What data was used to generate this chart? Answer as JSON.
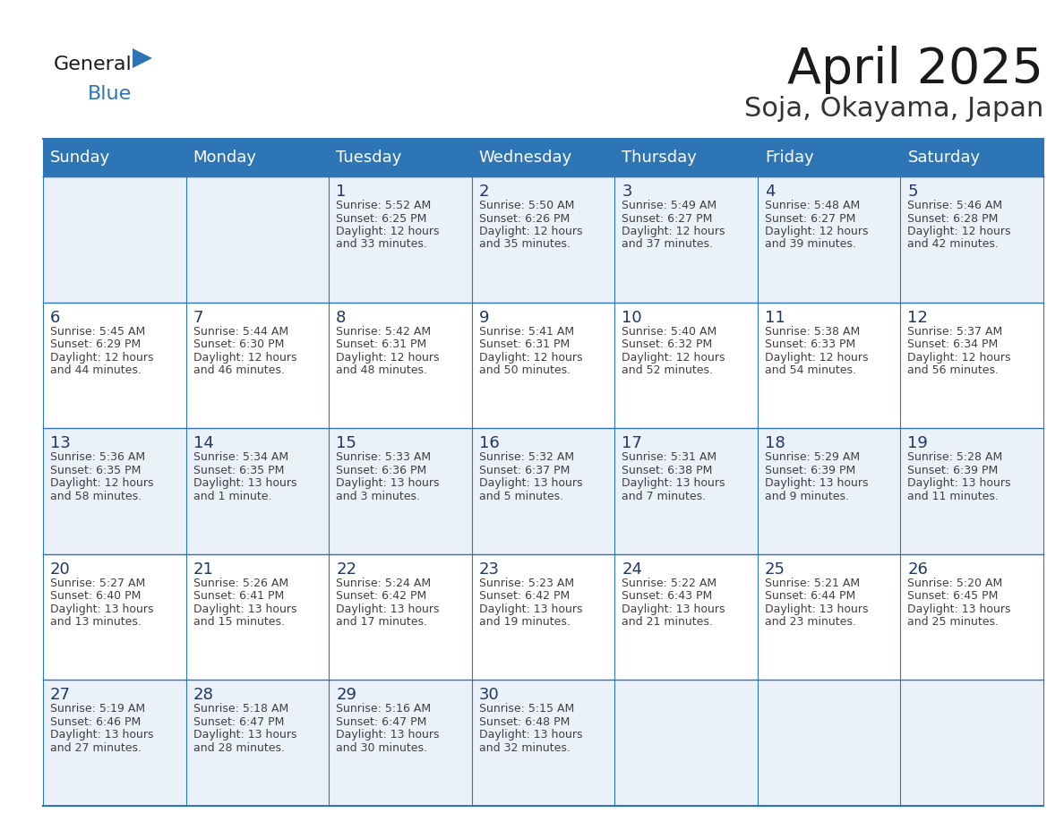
{
  "title": "April 2025",
  "subtitle": "Soja, Okayama, Japan",
  "header_bg": "#2E75B6",
  "header_text_color": "#FFFFFF",
  "cell_bg_white": "#FFFFFF",
  "cell_bg_gray": "#EAF1F8",
  "grid_line_color": "#2E75B6",
  "day_number_color": "#1F3864",
  "text_color": "#404040",
  "days_of_week": [
    "Sunday",
    "Monday",
    "Tuesday",
    "Wednesday",
    "Thursday",
    "Friday",
    "Saturday"
  ],
  "weeks": [
    [
      {
        "day": "",
        "sunrise": "",
        "sunset": "",
        "daylight": ""
      },
      {
        "day": "",
        "sunrise": "",
        "sunset": "",
        "daylight": ""
      },
      {
        "day": "1",
        "sunrise": "5:52 AM",
        "sunset": "6:25 PM",
        "daylight": "12 hours and 33 minutes."
      },
      {
        "day": "2",
        "sunrise": "5:50 AM",
        "sunset": "6:26 PM",
        "daylight": "12 hours and 35 minutes."
      },
      {
        "day": "3",
        "sunrise": "5:49 AM",
        "sunset": "6:27 PM",
        "daylight": "12 hours and 37 minutes."
      },
      {
        "day": "4",
        "sunrise": "5:48 AM",
        "sunset": "6:27 PM",
        "daylight": "12 hours and 39 minutes."
      },
      {
        "day": "5",
        "sunrise": "5:46 AM",
        "sunset": "6:28 PM",
        "daylight": "12 hours and 42 minutes."
      }
    ],
    [
      {
        "day": "6",
        "sunrise": "5:45 AM",
        "sunset": "6:29 PM",
        "daylight": "12 hours and 44 minutes."
      },
      {
        "day": "7",
        "sunrise": "5:44 AM",
        "sunset": "6:30 PM",
        "daylight": "12 hours and 46 minutes."
      },
      {
        "day": "8",
        "sunrise": "5:42 AM",
        "sunset": "6:31 PM",
        "daylight": "12 hours and 48 minutes."
      },
      {
        "day": "9",
        "sunrise": "5:41 AM",
        "sunset": "6:31 PM",
        "daylight": "12 hours and 50 minutes."
      },
      {
        "day": "10",
        "sunrise": "5:40 AM",
        "sunset": "6:32 PM",
        "daylight": "12 hours and 52 minutes."
      },
      {
        "day": "11",
        "sunrise": "5:38 AM",
        "sunset": "6:33 PM",
        "daylight": "12 hours and 54 minutes."
      },
      {
        "day": "12",
        "sunrise": "5:37 AM",
        "sunset": "6:34 PM",
        "daylight": "12 hours and 56 minutes."
      }
    ],
    [
      {
        "day": "13",
        "sunrise": "5:36 AM",
        "sunset": "6:35 PM",
        "daylight": "12 hours and 58 minutes."
      },
      {
        "day": "14",
        "sunrise": "5:34 AM",
        "sunset": "6:35 PM",
        "daylight": "13 hours and 1 minute."
      },
      {
        "day": "15",
        "sunrise": "5:33 AM",
        "sunset": "6:36 PM",
        "daylight": "13 hours and 3 minutes."
      },
      {
        "day": "16",
        "sunrise": "5:32 AM",
        "sunset": "6:37 PM",
        "daylight": "13 hours and 5 minutes."
      },
      {
        "day": "17",
        "sunrise": "5:31 AM",
        "sunset": "6:38 PM",
        "daylight": "13 hours and 7 minutes."
      },
      {
        "day": "18",
        "sunrise": "5:29 AM",
        "sunset": "6:39 PM",
        "daylight": "13 hours and 9 minutes."
      },
      {
        "day": "19",
        "sunrise": "5:28 AM",
        "sunset": "6:39 PM",
        "daylight": "13 hours and 11 minutes."
      }
    ],
    [
      {
        "day": "20",
        "sunrise": "5:27 AM",
        "sunset": "6:40 PM",
        "daylight": "13 hours and 13 minutes."
      },
      {
        "day": "21",
        "sunrise": "5:26 AM",
        "sunset": "6:41 PM",
        "daylight": "13 hours and 15 minutes."
      },
      {
        "day": "22",
        "sunrise": "5:24 AM",
        "sunset": "6:42 PM",
        "daylight": "13 hours and 17 minutes."
      },
      {
        "day": "23",
        "sunrise": "5:23 AM",
        "sunset": "6:42 PM",
        "daylight": "13 hours and 19 minutes."
      },
      {
        "day": "24",
        "sunrise": "5:22 AM",
        "sunset": "6:43 PM",
        "daylight": "13 hours and 21 minutes."
      },
      {
        "day": "25",
        "sunrise": "5:21 AM",
        "sunset": "6:44 PM",
        "daylight": "13 hours and 23 minutes."
      },
      {
        "day": "26",
        "sunrise": "5:20 AM",
        "sunset": "6:45 PM",
        "daylight": "13 hours and 25 minutes."
      }
    ],
    [
      {
        "day": "27",
        "sunrise": "5:19 AM",
        "sunset": "6:46 PM",
        "daylight": "13 hours and 27 minutes."
      },
      {
        "day": "28",
        "sunrise": "5:18 AM",
        "sunset": "6:47 PM",
        "daylight": "13 hours and 28 minutes."
      },
      {
        "day": "29",
        "sunrise": "5:16 AM",
        "sunset": "6:47 PM",
        "daylight": "13 hours and 30 minutes."
      },
      {
        "day": "30",
        "sunrise": "5:15 AM",
        "sunset": "6:48 PM",
        "daylight": "13 hours and 32 minutes."
      },
      {
        "day": "",
        "sunrise": "",
        "sunset": "",
        "daylight": ""
      },
      {
        "day": "",
        "sunrise": "",
        "sunset": "",
        "daylight": ""
      },
      {
        "day": "",
        "sunrise": "",
        "sunset": "",
        "daylight": ""
      }
    ]
  ],
  "logo_general_color": "#1a1a1a",
  "logo_blue_color": "#2E75B6",
  "logo_triangle_color": "#2E75B6",
  "title_fontsize": 40,
  "subtitle_fontsize": 22,
  "header_fontsize": 13,
  "day_num_fontsize": 13,
  "cell_text_fontsize": 9
}
